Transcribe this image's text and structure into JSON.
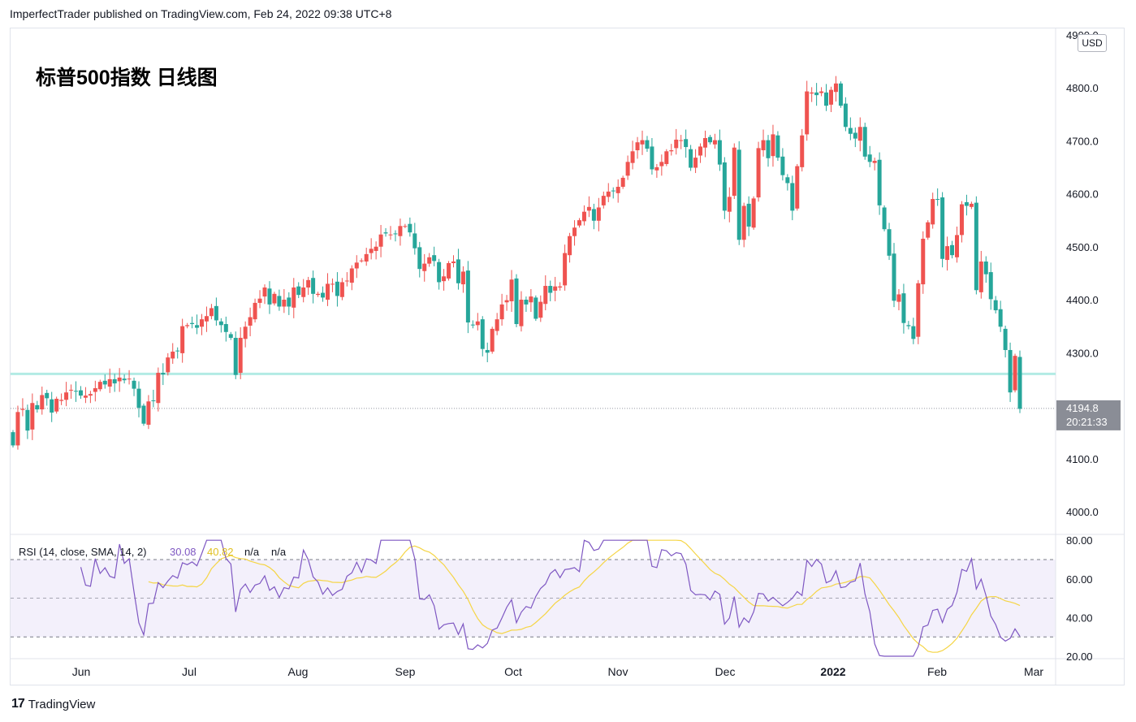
{
  "header": {
    "published": "ImperfectTrader published on TradingView.com, Feb 24, 2022 09:38 UTC+8"
  },
  "footer": {
    "brand": "TradingView"
  },
  "currency": "USD",
  "chart_data": {
    "type": "candlestick",
    "title": "标普500指数 日线图",
    "ylim": [
      3950,
      4905
    ],
    "y_ticks": [
      "4000.0",
      "4100.0",
      "4300.0",
      "4400.0",
      "4500.0",
      "4600.0",
      "4700.0",
      "4800.0",
      "4900.0"
    ],
    "x_labels": [
      "Jun",
      "Jul",
      "Aug",
      "Sep",
      "Oct",
      "Nov",
      "Dec",
      "2022",
      "Feb",
      "Mar"
    ],
    "last_price": {
      "value": "4194.8",
      "countdown": "20:21:33"
    },
    "horizontal_level": 4260,
    "colors": {
      "up": "#ef5350",
      "down": "#26a69a",
      "level_line": "#b2ebe4",
      "rsi": "#7e57c2",
      "rsi_ma": "#f5d545",
      "rsi_band": "#f3f0fb"
    },
    "candles_close": [
      4125,
      4188,
      4194,
      4153,
      4205,
      4193,
      4220,
      4214,
      4187,
      4213,
      4211,
      4225,
      4230,
      4227,
      4219,
      4219,
      4222,
      4233,
      4245,
      4240,
      4250,
      4242,
      4253,
      4248,
      4251,
      4232,
      4196,
      4166,
      4208,
      4209,
      4262,
      4259,
      4291,
      4302,
      4303,
      4350,
      4352,
      4354,
      4347,
      4363,
      4369,
      4384,
      4361,
      4352,
      4339,
      4328,
      4258,
      4328,
      4349,
      4367,
      4394,
      4402,
      4423,
      4391,
      4411,
      4387,
      4400,
      4387,
      4423,
      4409,
      4423,
      4437,
      4411,
      4411,
      4404,
      4430,
      4430,
      4407,
      4433,
      4436,
      4459,
      4470,
      4474,
      4486,
      4496,
      4500,
      4523,
      4525,
      4523,
      4524,
      4539,
      4539,
      4527,
      4497,
      4458,
      4468,
      4480,
      4473,
      4433,
      4444,
      4469,
      4472,
      4431,
      4453,
      4357,
      4352,
      4359,
      4307,
      4300,
      4345,
      4363,
      4391,
      4399,
      4438,
      4354,
      4400,
      4391,
      4406,
      4364,
      4396,
      4426,
      4413,
      4425,
      4425,
      4488,
      4520,
      4536,
      4550,
      4566,
      4575,
      4549,
      4574,
      4596,
      4604,
      4605,
      4613,
      4630,
      4660,
      4680,
      4697,
      4701,
      4685,
      4646,
      4650,
      4660,
      4680,
      4682,
      4702,
      4701,
      4688,
      4649,
      4668,
      4689,
      4705,
      4697,
      4701,
      4655,
      4568,
      4594,
      4687,
      4513,
      4577,
      4538,
      4591,
      4686,
      4701,
      4667,
      4712,
      4668,
      4635,
      4620,
      4568,
      4652,
      4710,
      4793,
      4791,
      4786,
      4793,
      4766,
      4796,
      4808,
      4766,
      4726,
      4713,
      4704,
      4726,
      4670,
      4660,
      4662,
      4578,
      4533,
      4483,
      4398,
      4410,
      4356,
      4350,
      4326,
      4431,
      4515,
      4546,
      4590,
      4589,
      4477,
      4501,
      4484,
      4522,
      4580,
      4577,
      4581,
      4418,
      4472,
      4448,
      4401,
      4380,
      4349,
      4305,
      4225,
      4294,
      4194
    ],
    "rsi": {
      "label": "RSI (14, close, SMA, 14, 2)",
      "value": "30.08",
      "ma_value": "40.82",
      "na1": "n/a",
      "na2": "n/a",
      "levels": [
        70,
        50,
        30
      ],
      "ticks": [
        "20.00",
        "40.00",
        "60.00",
        "80.00"
      ]
    }
  }
}
